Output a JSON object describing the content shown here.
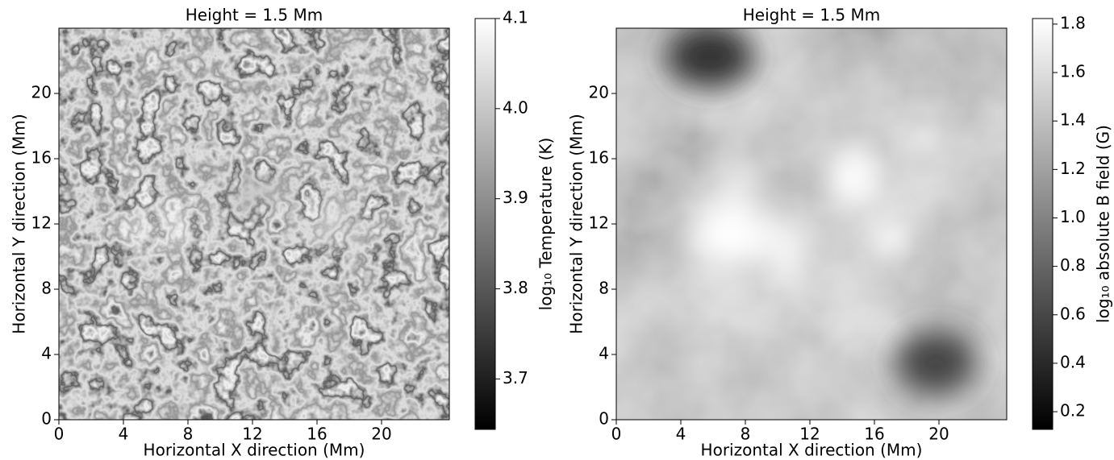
{
  "chart_data": [
    {
      "type": "heatmap",
      "title": "Height = 1.5 Mm",
      "xlabel": "Horizontal X direction (Mm)",
      "ylabel": "Horizontal Y direction (Mm)",
      "xlim": [
        0,
        24.2
      ],
      "ylim": [
        0,
        24
      ],
      "xticks": [
        0,
        4,
        8,
        12,
        16,
        20
      ],
      "yticks": [
        0,
        4,
        8,
        12,
        16,
        20
      ],
      "cmap": "gray",
      "colorbar": {
        "label": "log₁₀ Temperature (K)",
        "lim": [
          3.644,
          4.1
        ],
        "ticks": [
          3.7,
          3.8,
          3.9,
          4.0,
          4.1
        ]
      }
    },
    {
      "type": "heatmap",
      "title": "Height = 1.5 Mm",
      "xlabel": "Horizontal X direction (Mm)",
      "ylabel": "Horizontal Y direction (Mm)",
      "xlim": [
        0,
        24.2
      ],
      "ylim": [
        0,
        24
      ],
      "xticks": [
        0,
        4,
        8,
        12,
        16,
        20
      ],
      "yticks": [
        0,
        4,
        8,
        12,
        16,
        20
      ],
      "cmap": "gray",
      "colorbar": {
        "label": "log₁₀ absolute B field (G)",
        "lim": [
          0.127,
          1.823
        ],
        "ticks": [
          0.2,
          0.4,
          0.6,
          0.8,
          1.0,
          1.2,
          1.4,
          1.6,
          1.8
        ]
      }
    }
  ]
}
